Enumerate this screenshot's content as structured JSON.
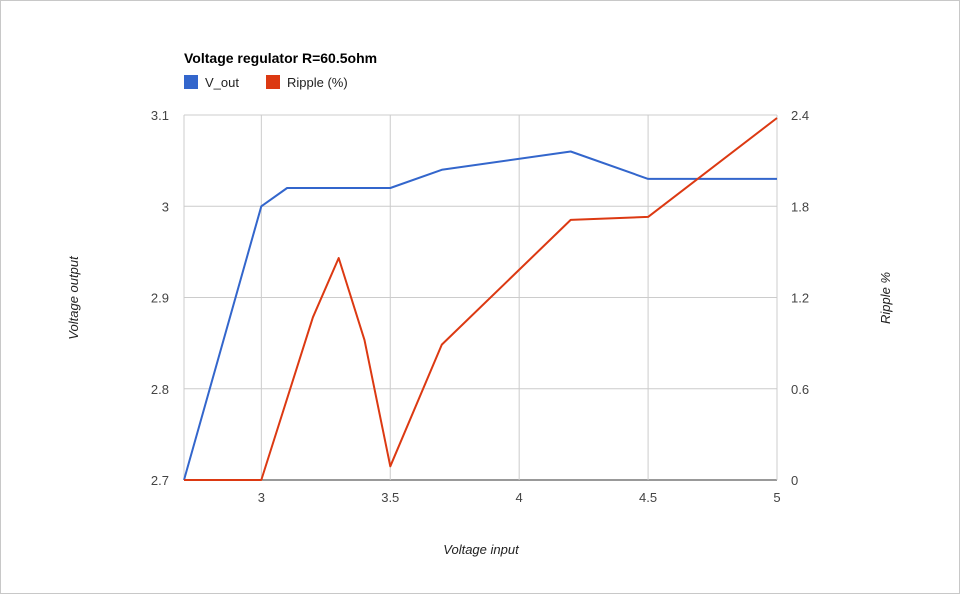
{
  "chart_data": {
    "type": "line",
    "title": "Voltage regulator R=60.5ohm",
    "xlabel": "Voltage input",
    "ylabel": "Voltage output",
    "y2label": "Ripple %",
    "xlim": [
      2.7,
      5
    ],
    "ylim": [
      2.7,
      3.1
    ],
    "y2lim": [
      0,
      2.4
    ],
    "x_ticks": [
      "3",
      "3.5",
      "4",
      "4.5",
      "5"
    ],
    "x_tick_values": [
      3,
      3.5,
      4,
      4.5,
      5
    ],
    "y_ticks": [
      "3.1",
      "3",
      "2.9",
      "2.8",
      "2.7"
    ],
    "y_tick_values": [
      3.1,
      3.0,
      2.9,
      2.8,
      2.7
    ],
    "y2_ticks": [
      "2.4",
      "1.8",
      "1.2",
      "0.6",
      "0"
    ],
    "y2_tick_values": [
      2.4,
      1.8,
      1.2,
      0.6,
      0
    ],
    "grid": true,
    "legend_position": "top-left",
    "series": [
      {
        "name": "V_out",
        "axis": "left",
        "color": "#3366cc",
        "x": [
          2.7,
          3.0,
          3.1,
          3.5,
          3.7,
          4.2,
          4.5,
          5.0
        ],
        "values": [
          2.7,
          3.0,
          3.02,
          3.02,
          3.04,
          3.06,
          3.03,
          3.03
        ]
      },
      {
        "name": "Ripple (%)",
        "axis": "right",
        "color": "#dc3912",
        "x": [
          2.7,
          3.0,
          3.2,
          3.3,
          3.4,
          3.5,
          3.7,
          4.2,
          4.5,
          5.0
        ],
        "values": [
          0,
          0,
          1.07,
          1.46,
          0.92,
          0.09,
          0.89,
          1.71,
          1.73,
          2.38
        ]
      }
    ]
  }
}
